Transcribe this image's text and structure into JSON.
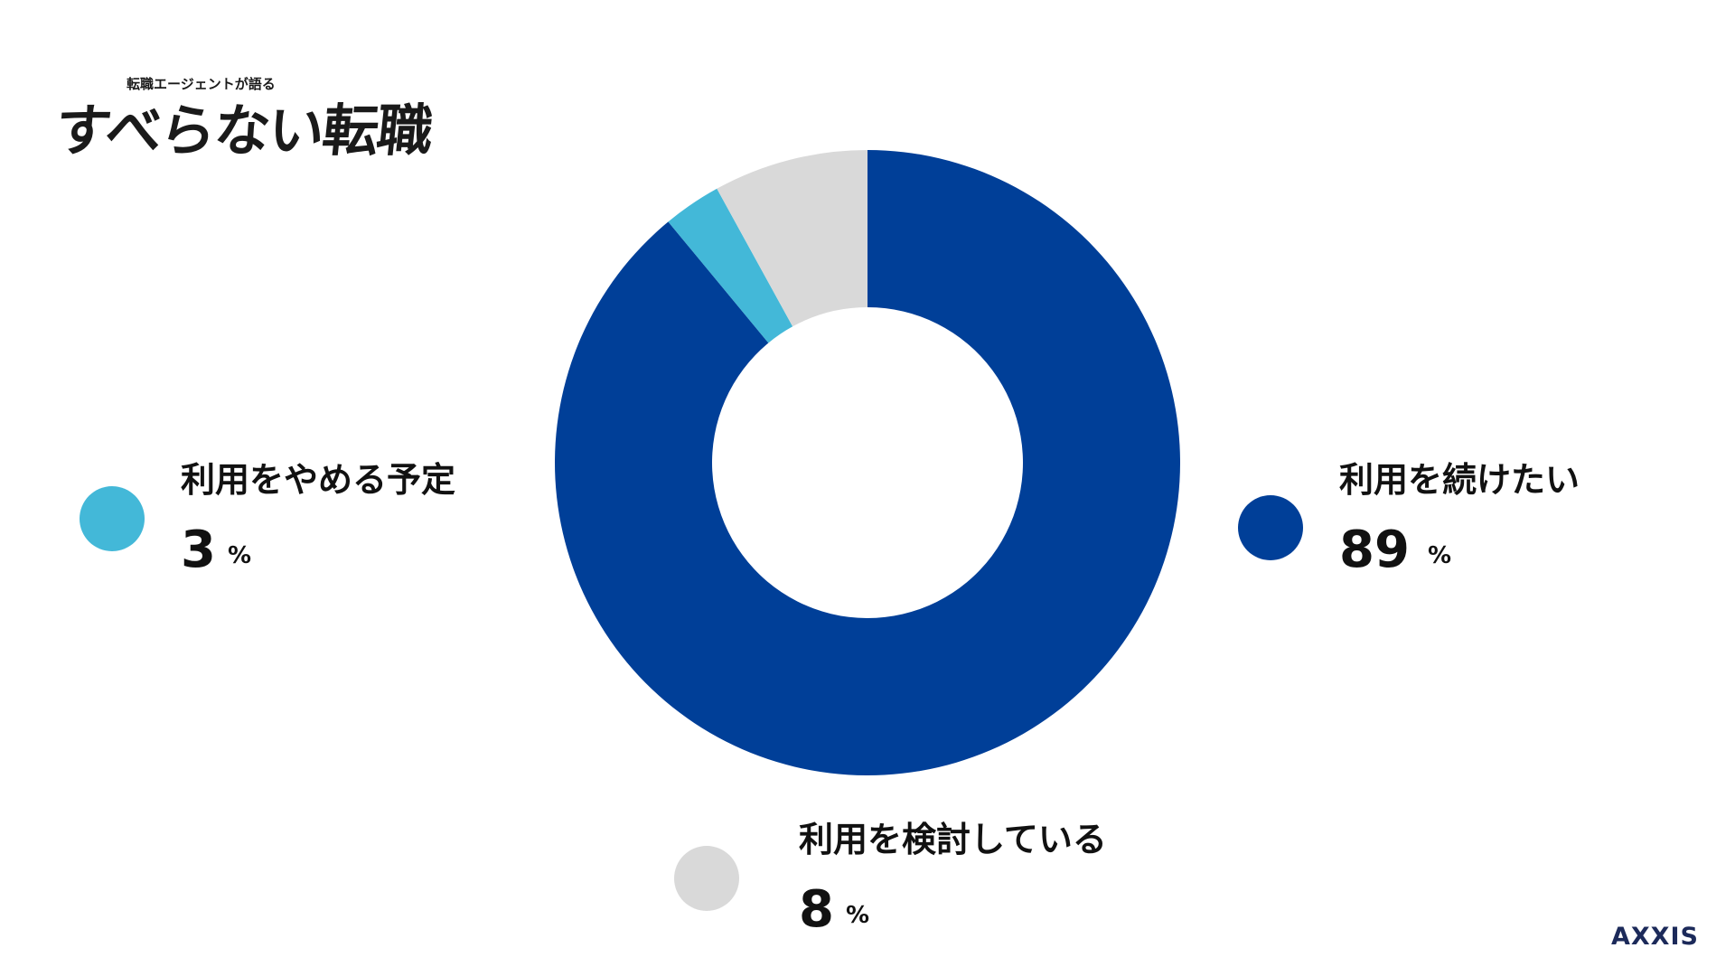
{
  "logo": {
    "subtitle": "転職エージェントが語る",
    "title": "すべらない転職"
  },
  "brand": "AXXIS",
  "chart_data": {
    "type": "pie",
    "unit": "%",
    "segments": [
      {
        "label": "利用を続けたい",
        "value": 89,
        "color": "#003f98"
      },
      {
        "label": "利用をやめる予定",
        "value": 3,
        "color": "#43b8d8"
      },
      {
        "label": "利用を検討している",
        "value": 8,
        "color": "#d9d9d9"
      }
    ]
  }
}
